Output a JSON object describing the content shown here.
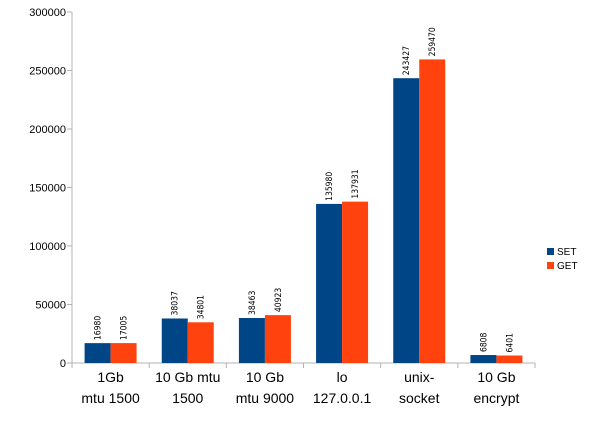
{
  "chart_data": {
    "type": "bar",
    "title": "",
    "xlabel": "",
    "ylabel": "",
    "ylim": [
      0,
      300000
    ],
    "yticks": [
      "0",
      "50000",
      "100000",
      "150000",
      "200000",
      "250000",
      "300000"
    ],
    "grid": false,
    "legend_placement": "right",
    "categories": [
      [
        "1Gb",
        "mtu 1500"
      ],
      [
        "10 Gb mtu",
        "1500"
      ],
      [
        "10 Gb",
        "mtu 9000"
      ],
      [
        "lo",
        "127.0.0.1"
      ],
      [
        "unix-",
        "socket"
      ],
      [
        "10 Gb",
        "encrypt"
      ]
    ],
    "series": [
      {
        "name": "SET",
        "color": "#004586",
        "values": [
          16980,
          38037,
          38463,
          135980,
          243427,
          6808
        ]
      },
      {
        "name": "GET",
        "color": "#ff420e",
        "values": [
          17005,
          34801,
          40923,
          137931,
          259470,
          6401
        ]
      }
    ]
  }
}
